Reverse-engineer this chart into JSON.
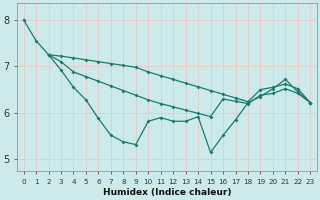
{
  "xlabel": "Humidex (Indice chaleur)",
  "background_color": "#cceaea",
  "grid_color": "#b8d8d8",
  "line_color": "#1a7a6e",
  "x_ticks": [
    0,
    1,
    2,
    3,
    4,
    5,
    6,
    7,
    8,
    9,
    10,
    11,
    12,
    13,
    14,
    15,
    16,
    17,
    18,
    19,
    20,
    21,
    22,
    23
  ],
  "ylim": [
    4.75,
    8.35
  ],
  "xlim": [
    -0.5,
    23.5
  ],
  "series1_x": [
    0,
    1,
    2,
    3,
    4,
    5,
    6,
    7,
    8,
    9,
    10,
    11,
    12,
    13,
    14,
    15,
    16,
    17,
    18,
    19,
    20,
    21,
    22,
    23
  ],
  "series1_y": [
    8.0,
    7.55,
    7.25,
    7.22,
    7.18,
    7.14,
    7.1,
    7.06,
    7.02,
    6.98,
    6.88,
    6.8,
    6.72,
    6.64,
    6.56,
    6.48,
    6.4,
    6.32,
    6.24,
    6.5,
    6.55,
    6.62,
    6.52,
    6.22
  ],
  "series2_x": [
    2,
    3,
    4,
    5,
    6,
    7,
    8,
    9,
    10,
    11,
    12,
    13,
    14,
    15,
    16,
    17,
    18,
    19,
    20,
    21,
    22,
    23
  ],
  "series2_y": [
    7.25,
    7.1,
    6.88,
    6.78,
    6.68,
    6.58,
    6.48,
    6.38,
    6.28,
    6.2,
    6.13,
    6.06,
    5.99,
    5.92,
    6.3,
    6.25,
    6.2,
    6.38,
    6.42,
    6.52,
    6.42,
    6.22
  ],
  "series3_x": [
    2,
    3,
    4,
    5,
    6,
    7,
    8,
    9,
    10,
    11,
    12,
    13,
    14,
    15,
    16,
    17,
    18,
    19,
    20,
    21,
    22,
    23
  ],
  "series3_y": [
    7.25,
    6.92,
    6.55,
    6.28,
    5.88,
    5.52,
    5.38,
    5.32,
    5.82,
    5.9,
    5.82,
    5.82,
    5.92,
    5.15,
    5.52,
    5.85,
    6.22,
    6.35,
    6.52,
    6.72,
    6.45,
    6.22
  ],
  "yticks": [
    5,
    6,
    7,
    8
  ]
}
